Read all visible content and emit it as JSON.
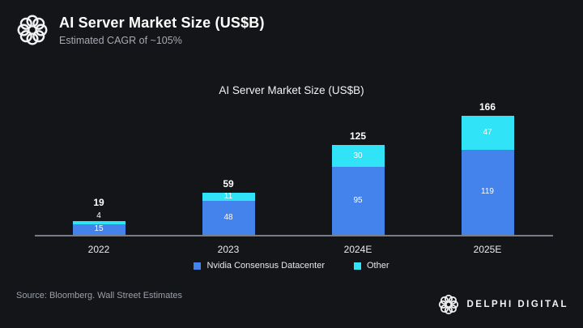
{
  "header": {
    "title": "AI Server Market Size (US$B)",
    "subtitle": "Estimated CAGR of ~105%"
  },
  "chart_data": {
    "type": "bar",
    "stacked": true,
    "title": "AI Server Market Size (US$B)",
    "categories": [
      "2022",
      "2023",
      "2024E",
      "2025E"
    ],
    "series": [
      {
        "name": "Nvidia Consensus Datacenter",
        "color": "#4482EC",
        "values": [
          15,
          48,
          95,
          119
        ]
      },
      {
        "name": "Other",
        "color": "#30E3F6",
        "values": [
          4,
          11,
          30,
          47
        ]
      }
    ],
    "totals": [
      19,
      59,
      125,
      166
    ],
    "legend_position": "bottom",
    "grid": false,
    "ylim": [
      0,
      180
    ]
  },
  "footer": {
    "source": "Source: Bloomberg. Wall Street Estimates",
    "brand": "DELPHI DIGITAL"
  },
  "colors": {
    "background": "#141518",
    "blue": "#4482EC",
    "cyan": "#30E3F6",
    "axis": "#787C85",
    "text_primary": "#FFFFFF",
    "text_muted": "#A6AAB2"
  }
}
